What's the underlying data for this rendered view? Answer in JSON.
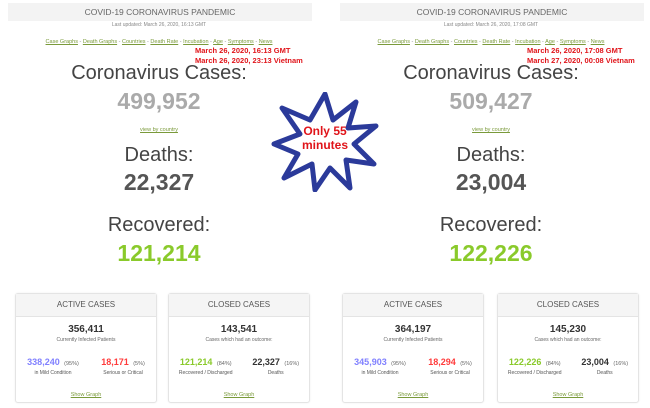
{
  "panels": [
    {
      "title": "COVID-19 CORONAVIRUS PANDEMIC",
      "last_updated": "Last updated: March 26, 2020, 16:13 GMT",
      "nav": [
        "Case Graphs",
        "Death Graphs",
        "Countries",
        "Death Rate",
        "Incubation",
        "Age",
        "Symptoms",
        "News"
      ],
      "note_gmt": "March  26, 2020, 16:13 GMT",
      "note_vn": "March 26, 2020, 23:13 Vietnam",
      "cases_label": "Coronavirus Cases:",
      "cases": "499,952",
      "view_by_country": "view by country",
      "deaths_label": "Deaths:",
      "deaths": "22,327",
      "recovered_label": "Recovered:",
      "recovered": "121,214",
      "active": {
        "title": "ACTIVE CASES",
        "total": "356,411",
        "total_label": "Currently Infected Patients",
        "mild": "338,240",
        "mild_pct": "(95%)",
        "mild_label": "in Mild Condition",
        "serious": "18,171",
        "serious_pct": "(5%)",
        "serious_label": "Serious or Critical",
        "show_graph": "Show Graph"
      },
      "closed": {
        "title": "CLOSED CASES",
        "total": "143,541",
        "total_label": "Cases which had an outcome:",
        "recovered": "121,214",
        "recovered_pct": "(84%)",
        "recovered_label": "Recovered / Discharged",
        "deaths": "22,327",
        "deaths_pct": "(16%)",
        "deaths_label": "Deaths",
        "show_graph": "Show Graph"
      }
    },
    {
      "title": "COVID-19 CORONAVIRUS PANDEMIC",
      "last_updated": "Last updated: March 26, 2020, 17:08 GMT",
      "nav": [
        "Case Graphs",
        "Death Graphs",
        "Countries",
        "Death Rate",
        "Incubation",
        "Age",
        "Symptoms",
        "News"
      ],
      "note_gmt": "March  26, 2020, 17:08 GMT",
      "note_vn": "March 27, 2020, 00:08 Vietnam",
      "cases_label": "Coronavirus Cases:",
      "cases": "509,427",
      "view_by_country": "view by country",
      "deaths_label": "Deaths:",
      "deaths": "23,004",
      "recovered_label": "Recovered:",
      "recovered": "122,226",
      "active": {
        "title": "ACTIVE CASES",
        "total": "364,197",
        "total_label": "Currently Infected Patients",
        "mild": "345,903",
        "mild_pct": "(95%)",
        "mild_label": "in Mild Condition",
        "serious": "18,294",
        "serious_pct": "(5%)",
        "serious_label": "Serious or Critical",
        "show_graph": "Show Graph"
      },
      "closed": {
        "title": "CLOSED CASES",
        "total": "145,230",
        "total_label": "Cases which had an outcome:",
        "recovered": "122,226",
        "recovered_pct": "(84%)",
        "recovered_label": "Recovered / Discharged",
        "deaths": "23,004",
        "deaths_pct": "(16%)",
        "deaths_label": "Deaths",
        "show_graph": "Show Graph"
      }
    }
  ],
  "callout": {
    "line1": "Only 55",
    "line2": "minutes",
    "icon": "starburst"
  },
  "colors": {
    "cases": "#aaaaaa",
    "deaths": "#555555",
    "recovered": "#8aca2b",
    "mild": "#8080ff",
    "serious": "#ff3b3b",
    "link": "#7a9a3a",
    "note": "#e0141a"
  }
}
